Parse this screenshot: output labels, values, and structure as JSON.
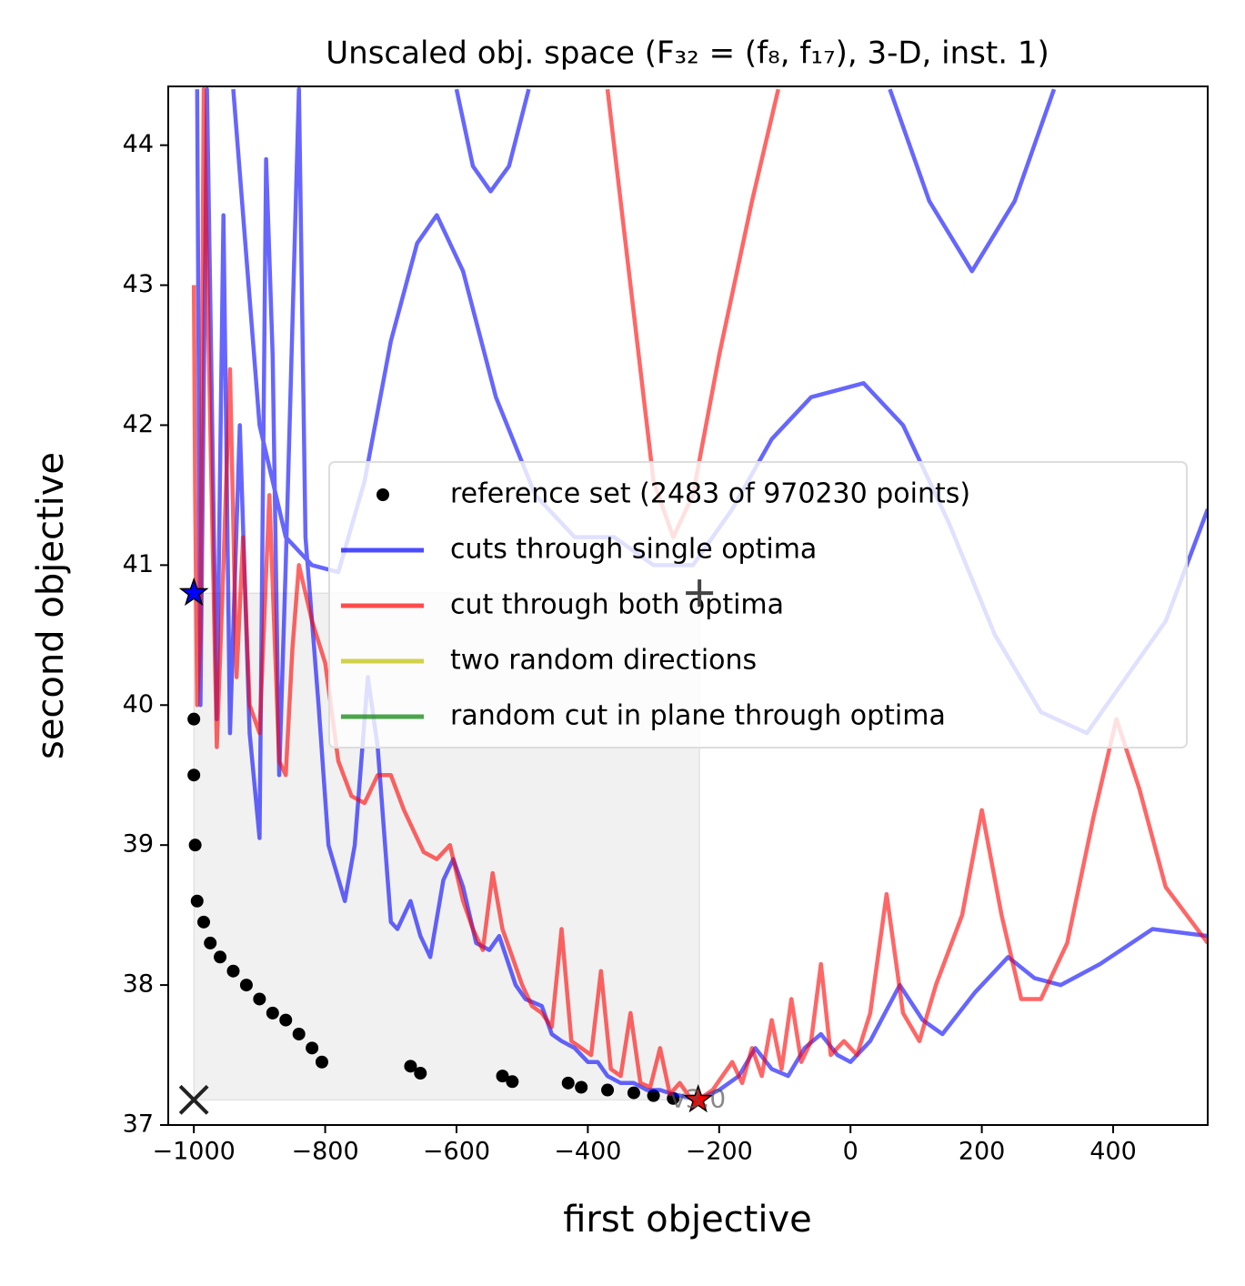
{
  "chart_data": {
    "type": "line",
    "title": "Unscaled obj. space (F₃₂ = (f₈, f₁₇), 3-D, inst. 1)",
    "xlabel": "first objective",
    "ylabel": "second objective",
    "xlim": [
      -1039,
      544
    ],
    "ylim": [
      37,
      44.42
    ],
    "xticks": [
      {
        "value": -1000,
        "label": "−1000"
      },
      {
        "value": -800,
        "label": "−800"
      },
      {
        "value": -600,
        "label": "−600"
      },
      {
        "value": -400,
        "label": "−400"
      },
      {
        "value": -200,
        "label": "−200"
      },
      0,
      200,
      400
    ],
    "yticks": [
      37,
      38,
      39,
      40,
      41,
      42,
      43,
      44
    ],
    "legend": "center right",
    "annotation": "v3.0",
    "series": [
      {
        "name": "reference set (2483 of 970230 points)",
        "color": "#000000",
        "marker": "dot",
        "x": [
          -1000,
          -1000,
          -998,
          -995,
          -985,
          -975,
          -960,
          -940,
          -920,
          -900,
          -880,
          -860,
          -840,
          -820,
          -805,
          -670,
          -655,
          -530,
          -515,
          -430,
          -410,
          -370,
          -330,
          -300,
          -270
        ],
        "values": [
          39.9,
          39.5,
          39.0,
          38.6,
          38.45,
          38.3,
          38.2,
          38.1,
          38.0,
          37.9,
          37.8,
          37.75,
          37.65,
          37.55,
          37.45,
          37.42,
          37.37,
          37.35,
          37.31,
          37.3,
          37.27,
          37.25,
          37.23,
          37.21,
          37.19
        ]
      },
      {
        "name": "cuts through single optima",
        "color": "#0000ff",
        "marker": "line",
        "x": [
          -995,
          -990,
          -980,
          -965,
          -955,
          -945,
          -930,
          -915,
          -900,
          -890,
          -880,
          -870,
          -860,
          -840,
          -830,
          -810,
          -795,
          -770,
          -755,
          -735,
          -720,
          -700,
          -690,
          -670,
          -655,
          -640,
          -620,
          -605,
          -590,
          -570,
          -550,
          -535,
          -510,
          -495,
          -470,
          -455,
          -440,
          -420,
          -400,
          -385,
          -370,
          -350,
          -330,
          -310,
          -290,
          -270,
          -250,
          -232,
          -200,
          -170,
          -145,
          -120,
          -95,
          -70,
          -45,
          -20,
          0,
          30,
          75,
          110,
          140,
          190,
          240,
          280,
          320,
          380,
          460,
          544,
          null,
          -940,
          -900,
          -860,
          -820,
          -780,
          -740,
          -700,
          -660,
          -630,
          -590,
          -540,
          -480,
          -420,
          -360,
          -300,
          -240,
          -180,
          -120,
          -60,
          20,
          80,
          150,
          220,
          290,
          360,
          420,
          480,
          544,
          null,
          -600,
          -575,
          -548,
          -520,
          -490,
          null,
          60,
          120,
          185,
          250,
          310
        ],
        "values": [
          44.4,
          40.0,
          44.4,
          39.9,
          43.5,
          39.8,
          42.0,
          39.8,
          39.05,
          43.9,
          42.5,
          39.5,
          41.0,
          44.4,
          41.2,
          40.0,
          39.0,
          38.6,
          39.0,
          40.2,
          39.7,
          38.45,
          38.4,
          38.6,
          38.35,
          38.2,
          38.75,
          38.9,
          38.7,
          38.3,
          38.25,
          38.35,
          38.0,
          37.9,
          37.85,
          37.65,
          37.6,
          37.55,
          37.45,
          37.45,
          37.35,
          37.3,
          37.3,
          37.25,
          37.25,
          37.22,
          37.2,
          37.18,
          37.25,
          37.35,
          37.55,
          37.4,
          37.35,
          37.55,
          37.65,
          37.5,
          37.45,
          37.6,
          38.0,
          37.75,
          37.65,
          37.95,
          38.2,
          38.05,
          38.0,
          38.15,
          38.4,
          38.35,
          null,
          44.4,
          42.0,
          41.2,
          41.0,
          40.95,
          41.6,
          42.6,
          43.3,
          43.5,
          43.1,
          42.2,
          41.5,
          41.2,
          41.2,
          41.0,
          41.0,
          41.4,
          41.9,
          42.2,
          42.3,
          42.0,
          41.3,
          40.5,
          39.95,
          39.8,
          40.2,
          40.6,
          41.4,
          null,
          44.4,
          43.85,
          43.67,
          43.85,
          44.4,
          null,
          44.4,
          43.6,
          43.1,
          43.6,
          44.4
        ]
      },
      {
        "name": "cut through both optima",
        "color": "#ff0000",
        "marker": "line",
        "x": [
          -1000,
          -998,
          -995,
          -990,
          -985,
          -975,
          -965,
          -955,
          -945,
          -935,
          -925,
          -915,
          -900,
          -885,
          -870,
          -860,
          -850,
          -840,
          -820,
          -800,
          -780,
          -760,
          -740,
          -720,
          -700,
          -680,
          -665,
          -650,
          -630,
          -610,
          -590,
          -575,
          -560,
          -545,
          -530,
          -515,
          -500,
          -485,
          -470,
          -455,
          -440,
          -425,
          -410,
          -395,
          -380,
          -365,
          -350,
          -335,
          -320,
          -305,
          -290,
          -275,
          -260,
          -245,
          -232,
          -210,
          -195,
          -180,
          -165,
          -150,
          -135,
          -120,
          -105,
          -90,
          -75,
          -60,
          -45,
          -30,
          -10,
          10,
          30,
          55,
          80,
          105,
          130,
          170,
          200,
          230,
          260,
          290,
          330,
          370,
          405,
          440,
          480,
          544,
          null,
          -370,
          -330,
          -300,
          -270,
          -240,
          -200,
          -150,
          -110
        ],
        "values": [
          43.0,
          41.5,
          40.0,
          40.5,
          44.4,
          42.0,
          39.7,
          41.0,
          42.4,
          40.2,
          41.2,
          40.0,
          39.8,
          41.5,
          39.6,
          39.5,
          40.4,
          41.0,
          40.6,
          40.3,
          39.6,
          39.35,
          39.3,
          39.5,
          39.5,
          39.25,
          39.1,
          38.95,
          38.9,
          39.0,
          38.6,
          38.4,
          38.25,
          38.8,
          38.4,
          38.2,
          38.0,
          37.85,
          37.8,
          37.7,
          38.4,
          37.6,
          37.55,
          37.5,
          38.1,
          37.4,
          37.35,
          37.8,
          37.3,
          37.27,
          37.55,
          37.22,
          37.3,
          37.2,
          37.18,
          37.25,
          37.35,
          37.45,
          37.3,
          37.55,
          37.35,
          37.75,
          37.4,
          37.9,
          37.45,
          37.6,
          38.15,
          37.5,
          37.6,
          37.5,
          37.8,
          38.65,
          37.8,
          37.6,
          38.0,
          38.5,
          39.25,
          38.5,
          37.9,
          37.9,
          38.3,
          39.2,
          39.9,
          39.4,
          38.7,
          38.3,
          null,
          44.4,
          42.8,
          41.6,
          41.2,
          41.5,
          42.5,
          43.6,
          44.4
        ]
      },
      {
        "name": "two random directions",
        "color": "#bfbf00",
        "marker": "line",
        "x": [],
        "values": []
      },
      {
        "name": "random cut in plane through optima",
        "color": "#008000",
        "marker": "line",
        "x": [],
        "values": []
      }
    ],
    "points": [
      {
        "marker": "star",
        "color": "#0000ff",
        "x": -1000,
        "y": 40.8
      },
      {
        "marker": "star",
        "color": "#ff0000",
        "x": -232,
        "y": 37.18
      },
      {
        "marker": "x",
        "color": "#222222",
        "x": -1000,
        "y": 37.18
      },
      {
        "marker": "plus",
        "color": "#444444",
        "x": -230,
        "y": 40.8
      }
    ]
  }
}
